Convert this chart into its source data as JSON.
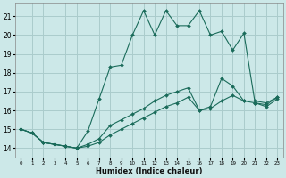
{
  "xlabel": "Humidex (Indice chaleur)",
  "background_color": "#cce8e8",
  "grid_color": "#aacccc",
  "line_color": "#1a6b5a",
  "xlim": [
    -0.5,
    23.5
  ],
  "ylim": [
    13.5,
    21.7
  ],
  "xticks": [
    0,
    1,
    2,
    3,
    4,
    5,
    6,
    7,
    8,
    9,
    10,
    11,
    12,
    13,
    14,
    15,
    16,
    17,
    18,
    19,
    20,
    21,
    22,
    23
  ],
  "yticks": [
    14,
    15,
    16,
    17,
    18,
    19,
    20,
    21
  ],
  "series1_x": [
    0,
    1,
    2,
    3,
    4,
    5,
    6,
    7,
    8,
    9,
    10,
    11,
    12,
    13,
    14,
    15,
    16,
    17,
    18,
    19,
    20,
    21,
    22,
    23
  ],
  "series1_y": [
    15.0,
    14.8,
    14.3,
    14.2,
    14.1,
    14.0,
    14.9,
    16.6,
    18.3,
    18.4,
    20.0,
    21.3,
    20.0,
    21.3,
    20.5,
    20.5,
    21.3,
    20.0,
    20.2,
    19.2,
    20.1,
    16.4,
    16.2,
    16.6
  ],
  "series2_x": [
    0,
    1,
    2,
    3,
    4,
    5,
    6,
    7,
    8,
    9,
    10,
    11,
    12,
    13,
    14,
    15,
    16,
    17,
    18,
    19,
    20,
    21,
    22,
    23
  ],
  "series2_y": [
    15.0,
    14.8,
    14.3,
    14.2,
    14.1,
    14.0,
    14.2,
    14.5,
    15.2,
    15.5,
    15.8,
    16.1,
    16.5,
    16.8,
    17.0,
    17.2,
    16.0,
    16.2,
    17.7,
    17.3,
    16.5,
    16.5,
    16.4,
    16.7
  ],
  "series3_x": [
    0,
    1,
    2,
    3,
    4,
    5,
    6,
    7,
    8,
    9,
    10,
    11,
    12,
    13,
    14,
    15,
    16,
    17,
    18,
    19,
    20,
    21,
    22,
    23
  ],
  "series3_y": [
    15.0,
    14.8,
    14.3,
    14.2,
    14.1,
    14.0,
    14.1,
    14.3,
    14.7,
    15.0,
    15.3,
    15.6,
    15.9,
    16.2,
    16.4,
    16.7,
    16.0,
    16.1,
    16.5,
    16.8,
    16.5,
    16.4,
    16.3,
    16.7
  ]
}
